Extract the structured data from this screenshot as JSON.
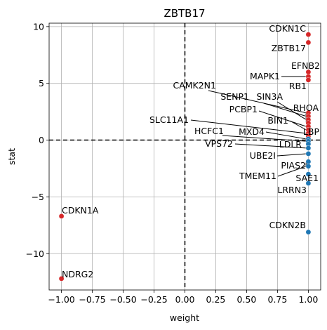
{
  "chart_data": {
    "type": "scatter",
    "title": "ZBTB17",
    "xlabel": "weight",
    "ylabel": "stat",
    "xlim": [
      -1.1,
      1.1
    ],
    "ylim": [
      -13.2,
      10.3
    ],
    "xticks": [
      -1.0,
      -0.75,
      -0.5,
      -0.25,
      0.0,
      0.25,
      0.5,
      0.75,
      1.0
    ],
    "xtick_labels": [
      "−1.00",
      "−0.75",
      "−0.50",
      "−0.25",
      "0.00",
      "0.25",
      "0.50",
      "0.75",
      "1.00"
    ],
    "yticks": [
      -10,
      -5,
      0,
      5,
      10
    ],
    "ytick_labels": [
      "−10",
      "−5",
      "0",
      "5",
      "10"
    ],
    "grid": true,
    "reference_lines": {
      "x": 0,
      "y": 0
    },
    "colors": {
      "positive": "#d62728",
      "negative": "#1f77b4"
    },
    "points": [
      {
        "x": 1.0,
        "y": 9.3,
        "label": "CDKN1C",
        "color": "#d62728"
      },
      {
        "x": 1.0,
        "y": 8.6,
        "label": "ZBTB17",
        "color": "#d62728"
      },
      {
        "x": 1.0,
        "y": 6.0,
        "label": "EFNB2",
        "color": "#d62728"
      },
      {
        "x": 1.0,
        "y": 5.6,
        "label": "MAPK1",
        "color": "#d62728"
      },
      {
        "x": 1.0,
        "y": 5.3,
        "label": "RB1",
        "color": "#d62728"
      },
      {
        "x": 1.0,
        "y": 2.4,
        "label": "CAMK2N1",
        "color": "#d62728"
      },
      {
        "x": 1.0,
        "y": 2.1,
        "label": "SENP1",
        "color": "#d62728"
      },
      {
        "x": 1.0,
        "y": 1.8,
        "label": "SIN3A",
        "color": "#d62728"
      },
      {
        "x": 1.0,
        "y": 1.5,
        "label": "RHOA",
        "color": "#d62728"
      },
      {
        "x": 1.0,
        "y": 1.2,
        "label": "PCBP1",
        "color": "#d62728"
      },
      {
        "x": 1.0,
        "y": 0.9,
        "label": "BIN1",
        "color": "#d62728"
      },
      {
        "x": 1.0,
        "y": 0.6,
        "label": "SLC11A1",
        "color": "#d62728"
      },
      {
        "x": 1.0,
        "y": 0.35,
        "label": "LBP",
        "color": "#d62728"
      },
      {
        "x": 1.0,
        "y": 0.1,
        "label": "MXD4",
        "color": "#1f77b4"
      },
      {
        "x": 1.0,
        "y": -0.1,
        "label": "HCFC1",
        "color": "#1f77b4"
      },
      {
        "x": 1.0,
        "y": -0.35,
        "label": "LDLR",
        "color": "#1f77b4"
      },
      {
        "x": 1.0,
        "y": -0.7,
        "label": "VPS72",
        "color": "#1f77b4"
      },
      {
        "x": 1.0,
        "y": -1.2,
        "label": "UBE2I",
        "color": "#1f77b4"
      },
      {
        "x": 1.0,
        "y": -1.9,
        "label": "PIAS2",
        "color": "#1f77b4"
      },
      {
        "x": 1.0,
        "y": -2.3,
        "label": "TMEM11",
        "color": "#1f77b4"
      },
      {
        "x": 1.0,
        "y": -3.0,
        "label": "SAE1",
        "color": "#1f77b4"
      },
      {
        "x": 1.0,
        "y": -3.8,
        "label": "LRRN3",
        "color": "#1f77b4"
      },
      {
        "x": 1.0,
        "y": -8.1,
        "label": "CDKN2B",
        "color": "#1f77b4"
      },
      {
        "x": -1.0,
        "y": -6.7,
        "label": "CDKN1A",
        "color": "#d62728"
      },
      {
        "x": -1.0,
        "y": -12.2,
        "label": "NDRG2",
        "color": "#d62728"
      }
    ]
  }
}
